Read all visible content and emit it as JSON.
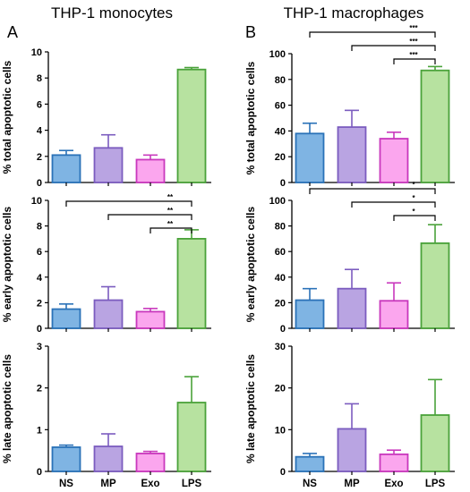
{
  "figure": {
    "columns": [
      {
        "letter": "A",
        "title": "THP-1 monocytes"
      },
      {
        "letter": "B",
        "title": "THP-1 macrophages"
      }
    ],
    "categories": [
      "NS",
      "MP",
      "Exo",
      "LPS"
    ],
    "colors": {
      "NS": {
        "fill": "#7fb4e3",
        "stroke": "#2a72b8"
      },
      "MP": {
        "fill": "#b9a4e2",
        "stroke": "#7b5cbf"
      },
      "Exo": {
        "fill": "#fba6ee",
        "stroke": "#c938bd"
      },
      "LPS": {
        "fill": "#b7e2a0",
        "stroke": "#4aa23a"
      }
    }
  },
  "chart_data": [
    {
      "type": "bar",
      "panel": "A-total",
      "title": "",
      "xlabel": "",
      "ylabel": "% total apoptotic cells",
      "categories": [
        "NS",
        "MP",
        "Exo",
        "LPS"
      ],
      "values": [
        2.1,
        2.65,
        1.75,
        8.65
      ],
      "errors": [
        0.35,
        1.0,
        0.35,
        0.15
      ],
      "ylim": [
        0,
        10
      ],
      "yticks": [
        "0",
        "2",
        "4",
        "6",
        "8",
        "10"
      ],
      "significance": [],
      "grid": false,
      "legend": "none"
    },
    {
      "type": "bar",
      "panel": "A-early",
      "title": "",
      "xlabel": "",
      "ylabel": "% early apoptotic cells",
      "categories": [
        "NS",
        "MP",
        "Exo",
        "LPS"
      ],
      "values": [
        1.5,
        2.2,
        1.3,
        7.0
      ],
      "errors": [
        0.4,
        1.05,
        0.25,
        0.7
      ],
      "ylim": [
        0,
        10
      ],
      "yticks": [
        "0",
        "2",
        "4",
        "6",
        "8",
        "10"
      ],
      "significance": [
        {
          "from": "NS",
          "to": "LPS",
          "label": "**"
        },
        {
          "from": "MP",
          "to": "LPS",
          "label": "**"
        },
        {
          "from": "Exo",
          "to": "LPS",
          "label": "**"
        }
      ],
      "grid": false,
      "legend": "none"
    },
    {
      "type": "bar",
      "panel": "A-late",
      "title": "",
      "xlabel": "",
      "ylabel": "% late apoptotic cells",
      "categories": [
        "NS",
        "MP",
        "Exo",
        "LPS"
      ],
      "values": [
        0.58,
        0.6,
        0.43,
        1.65
      ],
      "errors": [
        0.05,
        0.3,
        0.05,
        0.62
      ],
      "ylim": [
        0,
        3
      ],
      "yticks": [
        "0",
        "1",
        "2",
        "3"
      ],
      "significance": [],
      "grid": false,
      "legend": "none"
    },
    {
      "type": "bar",
      "panel": "B-total",
      "title": "",
      "xlabel": "",
      "ylabel": "% total apoptotic cells",
      "categories": [
        "NS",
        "MP",
        "Exo",
        "LPS"
      ],
      "values": [
        38,
        43,
        34,
        87
      ],
      "errors": [
        8,
        13,
        5,
        3
      ],
      "ylim": [
        0,
        100
      ],
      "yticks": [
        "0",
        "20",
        "40",
        "60",
        "80",
        "100"
      ],
      "significance": [
        {
          "from": "NS",
          "to": "LPS",
          "label": "***"
        },
        {
          "from": "MP",
          "to": "LPS",
          "label": "***"
        },
        {
          "from": "Exo",
          "to": "LPS",
          "label": "***"
        }
      ],
      "grid": false,
      "legend": "none"
    },
    {
      "type": "bar",
      "panel": "B-early",
      "title": "",
      "xlabel": "",
      "ylabel": "% early apoptotic cells",
      "categories": [
        "NS",
        "MP",
        "Exo",
        "LPS"
      ],
      "values": [
        22,
        31,
        21.5,
        66.5
      ],
      "errors": [
        9,
        15,
        14,
        14.5
      ],
      "ylim": [
        0,
        100
      ],
      "yticks": [
        "0",
        "20",
        "40",
        "60",
        "80",
        "100"
      ],
      "significance": [
        {
          "from": "NS",
          "to": "LPS",
          "label": "*"
        },
        {
          "from": "MP",
          "to": "LPS",
          "label": "*"
        },
        {
          "from": "Exo",
          "to": "LPS",
          "label": "*"
        }
      ],
      "grid": false,
      "legend": "none"
    },
    {
      "type": "bar",
      "panel": "B-late",
      "title": "",
      "xlabel": "",
      "ylabel": "% late apoptotic cells",
      "categories": [
        "NS",
        "MP",
        "Exo",
        "LPS"
      ],
      "values": [
        3.5,
        10.2,
        4.1,
        13.5
      ],
      "errors": [
        0.8,
        6.0,
        1.0,
        8.5
      ],
      "ylim": [
        0,
        30
      ],
      "yticks": [
        "0",
        "10",
        "20",
        "30"
      ],
      "significance": [],
      "grid": false,
      "legend": "none"
    }
  ]
}
